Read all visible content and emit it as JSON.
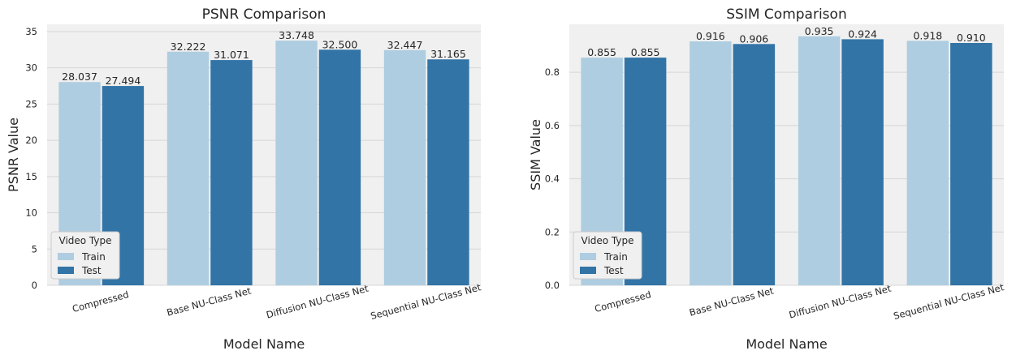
{
  "colors": {
    "train": "#aecde1",
    "test": "#3274a6",
    "plot_bg": "#f0f0f0",
    "grid": "#d6d6d6",
    "text": "#262626"
  },
  "legend": {
    "title": "Video Type",
    "entries": [
      "Train",
      "Test"
    ]
  },
  "chart_data": [
    {
      "type": "bar",
      "title": "PSNR Comparison",
      "xlabel": "Model Name",
      "ylabel": "PSNR Value",
      "categories": [
        "Compressed",
        "Base NU-Class Net",
        "Diffusion NU-Class Net",
        "Sequential NU-Class Net"
      ],
      "series": [
        {
          "name": "Train",
          "values": [
            28.037,
            32.222,
            33.748,
            32.447
          ],
          "labels": [
            "28.037",
            "32.222",
            "33.748",
            "32.447"
          ]
        },
        {
          "name": "Test",
          "values": [
            27.494,
            31.071,
            32.5,
            31.165
          ],
          "labels": [
            "27.494",
            "31.071",
            "32.500",
            "31.165"
          ]
        }
      ],
      "ylim": [
        0,
        36.0
      ],
      "yticks": [
        0,
        5,
        10,
        15,
        20,
        25,
        30,
        35
      ],
      "ytick_labels": [
        "0",
        "5",
        "10",
        "15",
        "20",
        "25",
        "30",
        "35"
      ],
      "grid": true,
      "legend_position": "lower-left"
    },
    {
      "type": "bar",
      "title": "SSIM Comparison",
      "xlabel": "Model Name",
      "ylabel": "SSIM Value",
      "categories": [
        "Compressed",
        "Base NU-Class Net",
        "Diffusion NU-Class Net",
        "Sequential NU-Class Net"
      ],
      "series": [
        {
          "name": "Train",
          "values": [
            0.855,
            0.916,
            0.935,
            0.918
          ],
          "labels": [
            "0.855",
            "0.916",
            "0.935",
            "0.918"
          ]
        },
        {
          "name": "Test",
          "values": [
            0.855,
            0.906,
            0.924,
            0.91
          ],
          "labels": [
            "0.855",
            "0.906",
            "0.924",
            "0.910"
          ]
        }
      ],
      "ylim": [
        0,
        0.98
      ],
      "yticks": [
        0,
        0.2,
        0.4,
        0.6,
        0.8
      ],
      "ytick_labels": [
        "0.0",
        "0.2",
        "0.4",
        "0.6",
        "0.8"
      ],
      "grid": true,
      "legend_position": "lower-left"
    }
  ]
}
